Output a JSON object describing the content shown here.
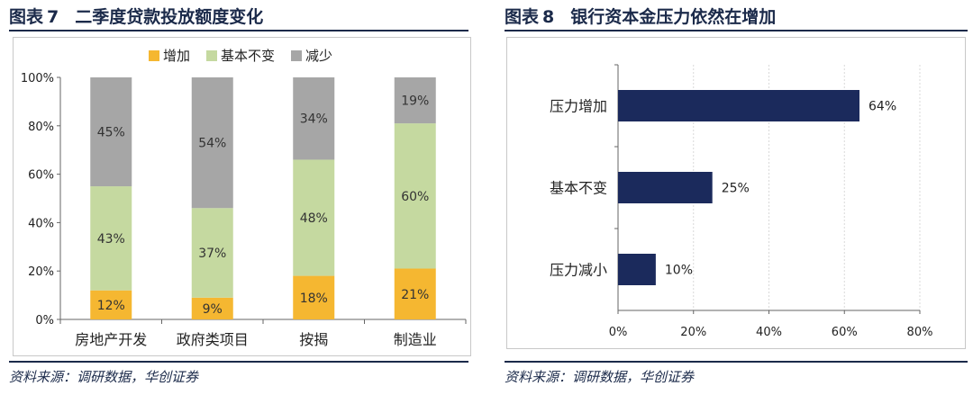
{
  "figure7": {
    "label": "图表",
    "number": "7",
    "title": "二季度贷款投放额度变化",
    "source": "资料来源：调研数据，华创证券"
  },
  "figure8": {
    "label": "图表",
    "number": "8",
    "title": "银行资本金压力依然在增加",
    "source": "资料来源：调研数据，华创证券"
  },
  "chart_data": [
    {
      "type": "bar",
      "stacked": true,
      "categories": [
        "房地产开发",
        "政府类项目",
        "按揭",
        "制造业"
      ],
      "series": [
        {
          "name": "增加",
          "values": [
            12,
            9,
            18,
            21
          ],
          "color": "#f5b731"
        },
        {
          "name": "基本不变",
          "values": [
            43,
            37,
            48,
            60
          ],
          "color": "#c5d9a0"
        },
        {
          "name": "减少",
          "values": [
            45,
            54,
            34,
            19
          ],
          "color": "#a6a6a6"
        }
      ],
      "data_labels": [
        [
          "12%",
          "9%",
          "18%",
          "21%"
        ],
        [
          "43%",
          "37%",
          "48%",
          "60%"
        ],
        [
          "45%",
          "54%",
          "34%",
          "19%"
        ]
      ],
      "y_ticks": [
        "0%",
        "20%",
        "40%",
        "60%",
        "80%",
        "100%"
      ],
      "ylim": [
        0,
        100
      ],
      "grid": false,
      "legend": "top"
    },
    {
      "type": "bar",
      "orientation": "horizontal",
      "categories": [
        "压力增加",
        "基本不变",
        "压力减小"
      ],
      "values": [
        64,
        25,
        10
      ],
      "data_labels": [
        "64%",
        "25%",
        "10%"
      ],
      "color": "#1b2a5c",
      "x_ticks": [
        "0%",
        "20%",
        "40%",
        "60%",
        "80%"
      ],
      "xlim": [
        0,
        80
      ],
      "grid": true
    }
  ]
}
